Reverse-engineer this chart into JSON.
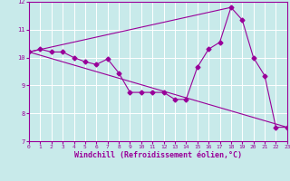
{
  "title": "",
  "xlabel": "Windchill (Refroidissement éolien,°C)",
  "background_color": "#c8eaea",
  "line_color": "#990099",
  "grid_color": "#ffffff",
  "xlim": [
    0,
    23
  ],
  "ylim": [
    7,
    12
  ],
  "xticks": [
    0,
    1,
    2,
    3,
    4,
    5,
    6,
    7,
    8,
    9,
    10,
    11,
    12,
    13,
    14,
    15,
    16,
    17,
    18,
    19,
    20,
    21,
    22,
    23
  ],
  "yticks": [
    7,
    8,
    9,
    10,
    11,
    12
  ],
  "line1_x": [
    0,
    1,
    2,
    3,
    4,
    5,
    6,
    7,
    8,
    9,
    10,
    11,
    12,
    13,
    14,
    15,
    16,
    17,
    18,
    19,
    20,
    21,
    22,
    23
  ],
  "line1_y": [
    10.2,
    10.3,
    10.2,
    10.2,
    10.0,
    9.85,
    9.75,
    9.95,
    9.45,
    8.75,
    8.75,
    8.75,
    8.75,
    8.5,
    8.5,
    9.65,
    10.3,
    10.55,
    11.8,
    11.35,
    10.0,
    9.35,
    7.5,
    7.5
  ],
  "line2_x": [
    0,
    23
  ],
  "line2_y": [
    10.2,
    7.5
  ],
  "line3_x": [
    0,
    18
  ],
  "line3_y": [
    10.2,
    11.8
  ]
}
